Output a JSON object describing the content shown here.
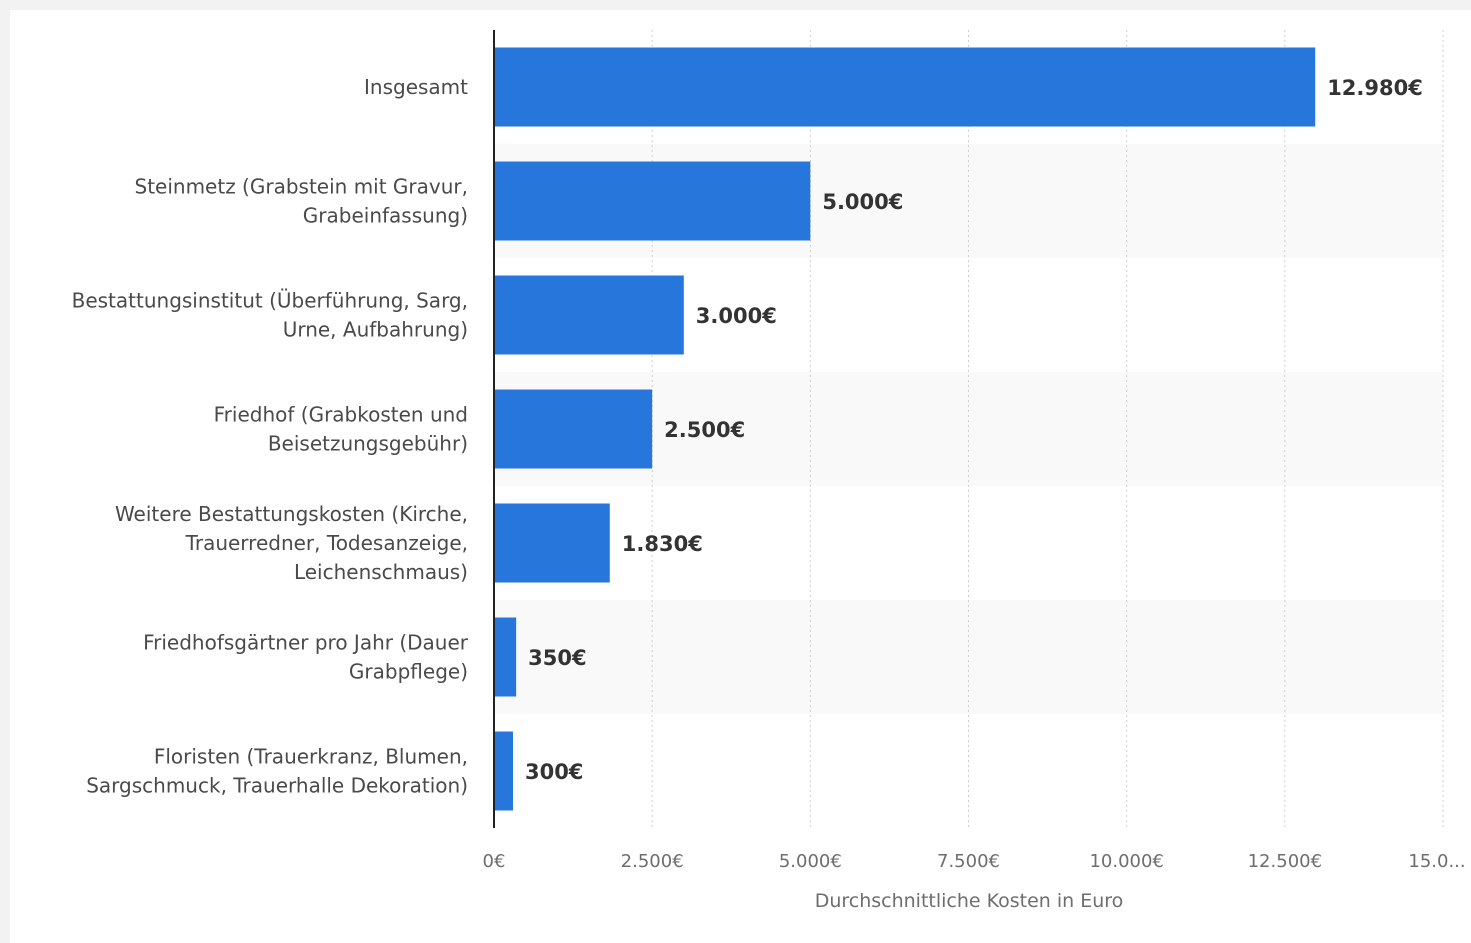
{
  "chart_data": {
    "type": "bar",
    "orientation": "horizontal",
    "categories": [
      [
        "Insgesamt"
      ],
      [
        "Steinmetz (Grabstein mit Gravur,",
        "Grabeinfassung)"
      ],
      [
        "Bestattungsinstitut (Überführung, Sarg,",
        "Urne, Aufbahrung)"
      ],
      [
        "Friedhof (Grabkosten und",
        "Beisetzungsgebühr)"
      ],
      [
        "Weitere Bestattungskosten (Kirche,",
        "Trauerredner, Todesanzeige,",
        "Leichenschmaus)"
      ],
      [
        "Friedhofsgärtner pro Jahr (Dauer",
        "Grabpflege)"
      ],
      [
        "Floristen (Trauerkranz, Blumen,",
        "Sargschmuck, Trauerhalle Dekoration)"
      ]
    ],
    "values": [
      12980,
      5000,
      3000,
      2500,
      1830,
      350,
      300
    ],
    "value_labels": [
      "12.980€",
      "5.000€",
      "3.000€",
      "2.500€",
      "1.830€",
      "350€",
      "300€"
    ],
    "xlim": [
      0,
      15000
    ],
    "ticks": [
      0,
      2500,
      5000,
      7500,
      10000,
      12500,
      15000
    ],
    "tick_labels": [
      "0€",
      "2.500€",
      "5.000€",
      "7.500€",
      "10.000€",
      "12.500€",
      "15.0..."
    ],
    "xlabel": "Durchschnittliche Kosten in Euro",
    "grid": "vertical dashed",
    "bar_color": "#2776dc",
    "band_color": "#f9f9f9"
  }
}
